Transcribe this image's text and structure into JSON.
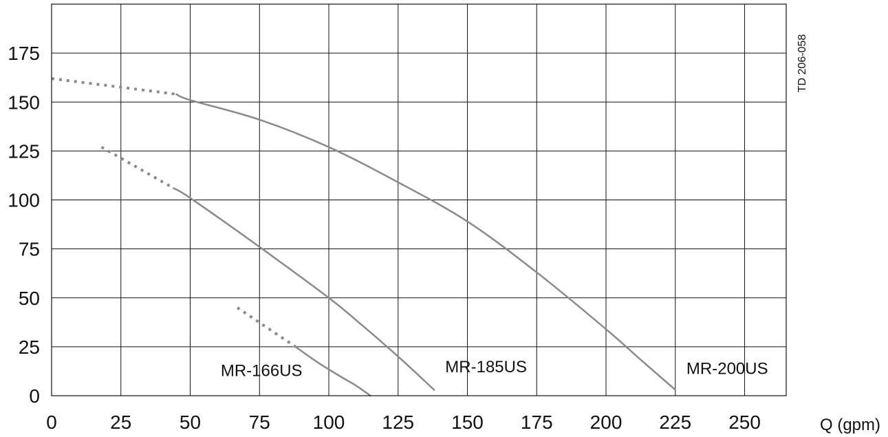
{
  "chart_data": {
    "type": "line",
    "xlabel": "Q (gpm)",
    "ylabel": "",
    "xlim": [
      0,
      265
    ],
    "ylim": [
      0,
      200
    ],
    "x_ticks": [
      0,
      25,
      50,
      75,
      100,
      125,
      150,
      175,
      200,
      225,
      250
    ],
    "y_ticks": [
      0,
      25,
      50,
      75,
      100,
      125,
      150,
      175
    ],
    "grid": true,
    "legend": "none",
    "drawing_code": "TD 206-058",
    "curve_color": "#8a8a8a",
    "series": [
      {
        "name": "MR-166US",
        "label_at": [
          61,
          10
        ],
        "dotted": [
          [
            67,
            45
          ],
          [
            88,
            25
          ]
        ],
        "solid": [
          [
            88,
            25
          ],
          [
            96,
            17
          ],
          [
            104,
            10
          ],
          [
            110,
            5
          ],
          [
            115,
            0
          ]
        ]
      },
      {
        "name": "MR-185US",
        "label_at": [
          142,
          12
        ],
        "dotted": [
          [
            18,
            127
          ],
          [
            44,
            106
          ]
        ],
        "solid": [
          [
            44,
            106
          ],
          [
            50,
            101
          ],
          [
            75,
            76
          ],
          [
            100,
            50
          ],
          [
            112,
            36
          ],
          [
            125,
            20
          ],
          [
            138,
            3
          ]
        ]
      },
      {
        "name": "MR-200US",
        "label_at": [
          229,
          11
        ],
        "dotted": [
          [
            0,
            162
          ],
          [
            45,
            154
          ]
        ],
        "solid": [
          [
            45,
            154
          ],
          [
            50,
            151
          ],
          [
            75,
            141
          ],
          [
            100,
            127
          ],
          [
            125,
            109
          ],
          [
            150,
            89
          ],
          [
            175,
            63
          ],
          [
            200,
            34
          ],
          [
            212,
            19
          ],
          [
            225,
            3
          ]
        ]
      }
    ]
  }
}
